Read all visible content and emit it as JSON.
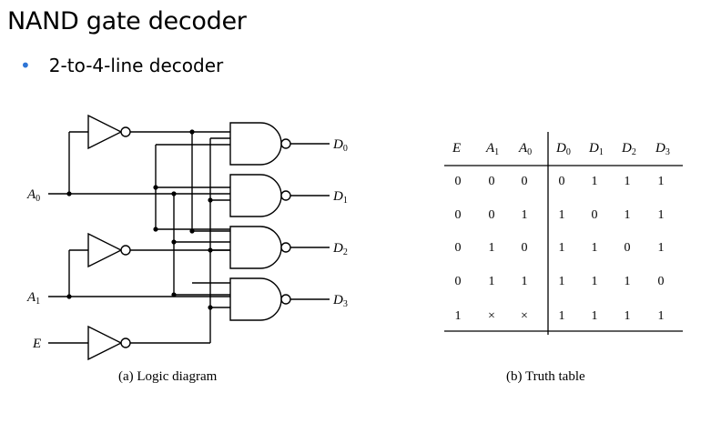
{
  "slide": {
    "title": "NAND gate decoder",
    "bullet": "2-to-4-line decoder"
  },
  "diagram": {
    "inputs": [
      {
        "name": "A",
        "sub": "0"
      },
      {
        "name": "A",
        "sub": "1"
      },
      {
        "name": "E",
        "sub": ""
      }
    ],
    "outputs": [
      {
        "name": "D",
        "sub": "0"
      },
      {
        "name": "D",
        "sub": "1"
      },
      {
        "name": "D",
        "sub": "2"
      },
      {
        "name": "D",
        "sub": "3"
      }
    ],
    "caption": "(a) Logic diagram"
  },
  "truth_table": {
    "headers": [
      {
        "name": "E",
        "sub": ""
      },
      {
        "name": "A",
        "sub": "1"
      },
      {
        "name": "A",
        "sub": "0"
      },
      {
        "name": "D",
        "sub": "0"
      },
      {
        "name": "D",
        "sub": "1"
      },
      {
        "name": "D",
        "sub": "2"
      },
      {
        "name": "D",
        "sub": "3"
      }
    ],
    "rows": [
      [
        "0",
        "0",
        "0",
        "0",
        "1",
        "1",
        "1"
      ],
      [
        "0",
        "0",
        "1",
        "1",
        "0",
        "1",
        "1"
      ],
      [
        "0",
        "1",
        "0",
        "1",
        "1",
        "0",
        "1"
      ],
      [
        "0",
        "1",
        "1",
        "1",
        "1",
        "1",
        "0"
      ],
      [
        "1",
        "×",
        "×",
        "1",
        "1",
        "1",
        "1"
      ]
    ],
    "caption": "(b) Truth table"
  }
}
